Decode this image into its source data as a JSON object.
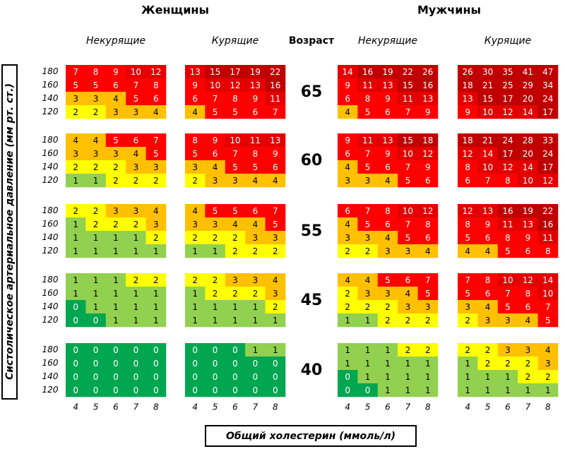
{
  "groups": [
    {
      "label": "Женщины"
    },
    {
      "label": "Мужчины"
    }
  ],
  "panels": [
    {
      "label": "Некурящие"
    },
    {
      "label": "Курящие"
    },
    {
      "label": "Некурящие"
    },
    {
      "label": "Курящие"
    }
  ],
  "age_header": "Возраст",
  "y_axis_label": "Систолическое артериальное давление (мм рт. ст.)",
  "x_axis_label": "Общий холестерин (ммоль/л)",
  "pressure_labels": [
    180,
    160,
    140,
    120
  ],
  "cholesterol_labels": [
    4,
    5,
    6,
    7,
    8
  ],
  "blocks": [
    {
      "age": 65,
      "panels": [
        [
          [
            7,
            8,
            9,
            10,
            12
          ],
          [
            5,
            5,
            6,
            7,
            8
          ],
          [
            3,
            3,
            4,
            5,
            6
          ],
          [
            2,
            2,
            3,
            3,
            4
          ]
        ],
        [
          [
            13,
            15,
            17,
            19,
            22
          ],
          [
            9,
            10,
            12,
            13,
            16
          ],
          [
            6,
            7,
            8,
            9,
            11
          ],
          [
            4,
            5,
            5,
            6,
            7
          ]
        ],
        [
          [
            14,
            16,
            19,
            22,
            26
          ],
          [
            9,
            11,
            13,
            15,
            16
          ],
          [
            6,
            8,
            9,
            11,
            13
          ],
          [
            4,
            5,
            6,
            7,
            9
          ]
        ],
        [
          [
            26,
            30,
            35,
            41,
            47
          ],
          [
            18,
            21,
            25,
            29,
            34
          ],
          [
            13,
            15,
            17,
            20,
            24
          ],
          [
            9,
            10,
            12,
            14,
            17
          ]
        ]
      ]
    },
    {
      "age": 60,
      "panels": [
        [
          [
            4,
            4,
            5,
            6,
            7
          ],
          [
            3,
            3,
            3,
            4,
            5
          ],
          [
            2,
            2,
            2,
            3,
            3
          ],
          [
            1,
            1,
            2,
            2,
            2
          ]
        ],
        [
          [
            8,
            9,
            10,
            11,
            13
          ],
          [
            5,
            6,
            7,
            8,
            9
          ],
          [
            3,
            4,
            5,
            5,
            6
          ],
          [
            2,
            3,
            3,
            4,
            4
          ]
        ],
        [
          [
            9,
            11,
            13,
            15,
            18
          ],
          [
            6,
            7,
            9,
            10,
            12
          ],
          [
            4,
            5,
            6,
            7,
            9
          ],
          [
            3,
            3,
            4,
            5,
            6
          ]
        ],
        [
          [
            18,
            21,
            24,
            28,
            33
          ],
          [
            12,
            14,
            17,
            20,
            24
          ],
          [
            8,
            10,
            12,
            14,
            17
          ],
          [
            6,
            7,
            8,
            10,
            12
          ]
        ]
      ]
    },
    {
      "age": 55,
      "panels": [
        [
          [
            2,
            2,
            3,
            3,
            4
          ],
          [
            1,
            2,
            2,
            2,
            3
          ],
          [
            1,
            1,
            1,
            1,
            2
          ],
          [
            1,
            1,
            1,
            1,
            1
          ]
        ],
        [
          [
            4,
            5,
            5,
            6,
            7
          ],
          [
            3,
            3,
            4,
            4,
            5
          ],
          [
            2,
            2,
            2,
            3,
            3
          ],
          [
            1,
            1,
            2,
            2,
            2
          ]
        ],
        [
          [
            6,
            7,
            8,
            10,
            12
          ],
          [
            4,
            5,
            6,
            7,
            8
          ],
          [
            3,
            3,
            4,
            5,
            6
          ],
          [
            2,
            2,
            3,
            3,
            4
          ]
        ],
        [
          [
            12,
            13,
            16,
            19,
            22
          ],
          [
            8,
            9,
            11,
            13,
            16
          ],
          [
            5,
            6,
            8,
            9,
            11
          ],
          [
            4,
            4,
            5,
            6,
            8
          ]
        ]
      ]
    },
    {
      "age": 45,
      "panels": [
        [
          [
            1,
            1,
            1,
            2,
            2
          ],
          [
            1,
            1,
            1,
            1,
            1
          ],
          [
            0,
            1,
            1,
            1,
            1
          ],
          [
            0,
            0,
            1,
            1,
            1
          ]
        ],
        [
          [
            2,
            2,
            3,
            3,
            4
          ],
          [
            1,
            2,
            2,
            2,
            3
          ],
          [
            1,
            1,
            1,
            1,
            2
          ],
          [
            1,
            1,
            1,
            1,
            1
          ]
        ],
        [
          [
            4,
            4,
            5,
            6,
            7
          ],
          [
            2,
            3,
            3,
            4,
            5
          ],
          [
            2,
            2,
            2,
            3,
            3
          ],
          [
            1,
            1,
            2,
            2,
            2
          ]
        ],
        [
          [
            7,
            8,
            10,
            12,
            14
          ],
          [
            5,
            6,
            7,
            8,
            10
          ],
          [
            3,
            4,
            5,
            6,
            7
          ],
          [
            2,
            3,
            3,
            4,
            5
          ]
        ]
      ]
    },
    {
      "age": 40,
      "panels": [
        [
          [
            0,
            0,
            0,
            0,
            0
          ],
          [
            0,
            0,
            0,
            0,
            0
          ],
          [
            0,
            0,
            0,
            0,
            0
          ],
          [
            0,
            0,
            0,
            0,
            0
          ]
        ],
        [
          [
            0,
            0,
            0,
            1,
            1
          ],
          [
            0,
            0,
            0,
            0,
            0
          ],
          [
            0,
            0,
            0,
            0,
            0
          ],
          [
            0,
            0,
            0,
            0,
            0
          ]
        ],
        [
          [
            1,
            1,
            1,
            2,
            2
          ],
          [
            1,
            1,
            1,
            1,
            1
          ],
          [
            0,
            1,
            1,
            1,
            1
          ],
          [
            0,
            0,
            1,
            1,
            1
          ]
        ],
        [
          [
            2,
            2,
            3,
            3,
            4
          ],
          [
            1,
            2,
            2,
            2,
            3
          ],
          [
            1,
            1,
            1,
            2,
            2
          ],
          [
            1,
            1,
            1,
            1,
            1
          ]
        ]
      ]
    }
  ]
}
